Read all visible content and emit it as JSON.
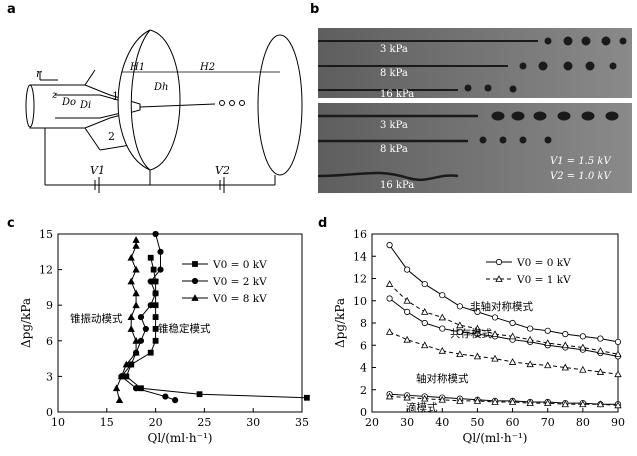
{
  "panels": {
    "a": {
      "label": "a",
      "symbols": {
        "r": "r",
        "z": "z",
        "Do": "Do",
        "Di": "Di",
        "Dh": "Dh",
        "H1": "H1",
        "H2": "H2",
        "V1": "V1",
        "V2": "V2",
        "one": "1",
        "two": "2"
      }
    },
    "b": {
      "label": "b",
      "strips": [
        "3 kPa",
        "8 kPa",
        "16 kPa",
        "3 kPa",
        "8 kPa",
        "16 kPa"
      ],
      "voltage_note_1": "V1 = 1.5 kV",
      "voltage_note_2": "V2 = 1.0 kV"
    },
    "c": {
      "label": "c"
    },
    "d": {
      "label": "d"
    }
  },
  "chart_data": [
    {
      "type": "line",
      "panel": "c",
      "xlabel": "Ql/(ml·h⁻¹)",
      "ylabel": "Δpg/kPa",
      "xlim": [
        10,
        35
      ],
      "ylim": [
        0,
        15
      ],
      "xticks": [
        10,
        15,
        20,
        25,
        30,
        35
      ],
      "yticks": [
        0,
        3,
        6,
        9,
        12,
        15
      ],
      "legend": [
        "V0 = 0 kV",
        "V0 = 2 kV",
        "V0 = 8 kV"
      ],
      "annotations": [
        "锥振动模式",
        "锥稳定模式"
      ],
      "series": [
        {
          "name": "V0 = 0 kV",
          "marker": "square",
          "x": [
            35.5,
            24.5,
            18.5,
            17.0,
            17.5,
            19.5,
            20.0,
            20.0,
            20.0,
            20.0,
            20.0,
            20.0,
            19.8,
            19.5
          ],
          "y": [
            1.2,
            1.5,
            2.0,
            3.0,
            4.0,
            5.0,
            6.0,
            7.0,
            8.0,
            9.0,
            10.0,
            11.0,
            12.0,
            13.0
          ]
        },
        {
          "name": "V0 = 2 kV",
          "marker": "circle",
          "x": [
            22.0,
            21.0,
            18.0,
            16.5,
            17.5,
            18.0,
            18.5,
            19.0,
            18.5,
            19.5,
            20.0,
            19.5,
            20.5,
            20.5,
            20.0
          ],
          "y": [
            1.0,
            1.3,
            2.0,
            3.0,
            4.0,
            5.0,
            6.0,
            7.0,
            8.0,
            9.0,
            10.0,
            11.0,
            12.0,
            13.5,
            15.0
          ]
        },
        {
          "name": "V0 = 8 kV",
          "marker": "triangle",
          "x": [
            16.3,
            16.0,
            16.5,
            17.0,
            18.0,
            18.0,
            17.5,
            17.5,
            18.0,
            18.0,
            17.5,
            18.0,
            17.5,
            18.0,
            18.0
          ],
          "y": [
            1.0,
            2.0,
            3.0,
            4.0,
            5.0,
            6.0,
            7.0,
            8.0,
            9.0,
            10.0,
            11.0,
            12.0,
            13.0,
            14.0,
            14.5
          ]
        }
      ]
    },
    {
      "type": "line",
      "panel": "d",
      "xlabel": "Ql/(ml·h⁻¹)",
      "ylabel": "Δpg/kPa",
      "xlim": [
        20,
        90
      ],
      "ylim": [
        0,
        16
      ],
      "xticks": [
        20,
        30,
        40,
        50,
        60,
        70,
        80,
        90
      ],
      "yticks": [
        0,
        2,
        4,
        6,
        8,
        10,
        12,
        14,
        16
      ],
      "legend": [
        "V0 = 0 kV",
        "V0 = 1 kV"
      ],
      "annotations": [
        "非轴对称模式",
        "共存模式",
        "轴对称模式",
        "滴模式"
      ],
      "series": [
        {
          "name": "V0 = 0 kV upper",
          "marker": "circle",
          "dash": false,
          "x": [
            25,
            30,
            35,
            40,
            45,
            50,
            55,
            60,
            65,
            70,
            75,
            80,
            85,
            90
          ],
          "y": [
            15.0,
            12.8,
            11.5,
            10.5,
            9.5,
            9.0,
            8.5,
            8.0,
            7.5,
            7.3,
            7.0,
            6.8,
            6.6,
            6.3
          ]
        },
        {
          "name": "V0 = 0 kV lower",
          "marker": "circle",
          "dash": false,
          "x": [
            25,
            30,
            35,
            40,
            45,
            50,
            55,
            60,
            65,
            70,
            75,
            80,
            85,
            90
          ],
          "y": [
            10.2,
            9.0,
            8.0,
            7.5,
            7.2,
            7.0,
            6.8,
            6.5,
            6.3,
            6.0,
            5.8,
            5.6,
            5.3,
            5.0
          ]
        },
        {
          "name": "V0 = 1 kV upper",
          "marker": "triangle",
          "dash": true,
          "x": [
            25,
            30,
            35,
            40,
            45,
            50,
            55,
            60,
            65,
            70,
            75,
            80,
            85,
            90
          ],
          "y": [
            11.5,
            10.0,
            9.0,
            8.5,
            7.8,
            7.5,
            7.0,
            6.8,
            6.5,
            6.2,
            6.0,
            5.8,
            5.5,
            5.2
          ]
        },
        {
          "name": "V0 = 1 kV lower",
          "marker": "triangle",
          "dash": true,
          "x": [
            25,
            30,
            35,
            40,
            45,
            50,
            55,
            60,
            65,
            70,
            75,
            80,
            85,
            90
          ],
          "y": [
            7.2,
            6.5,
            6.0,
            5.5,
            5.2,
            5.0,
            4.8,
            4.5,
            4.3,
            4.2,
            4.0,
            3.8,
            3.6,
            3.4
          ]
        },
        {
          "name": "V0 = 0 kV drip",
          "marker": "circle",
          "dash": false,
          "x": [
            25,
            30,
            35,
            40,
            45,
            50,
            55,
            60,
            65,
            70,
            75,
            80,
            85,
            90
          ],
          "y": [
            1.6,
            1.5,
            1.4,
            1.3,
            1.2,
            1.1,
            1.0,
            1.0,
            0.9,
            0.9,
            0.8,
            0.8,
            0.7,
            0.7
          ]
        },
        {
          "name": "V0 = 1 kV drip",
          "marker": "triangle",
          "dash": true,
          "x": [
            25,
            30,
            35,
            40,
            45,
            50,
            55,
            60,
            65,
            70,
            75,
            80,
            85,
            90
          ],
          "y": [
            1.4,
            1.3,
            1.2,
            1.1,
            1.0,
            1.0,
            0.9,
            0.9,
            0.8,
            0.8,
            0.7,
            0.7,
            0.7,
            0.6
          ]
        }
      ]
    }
  ]
}
